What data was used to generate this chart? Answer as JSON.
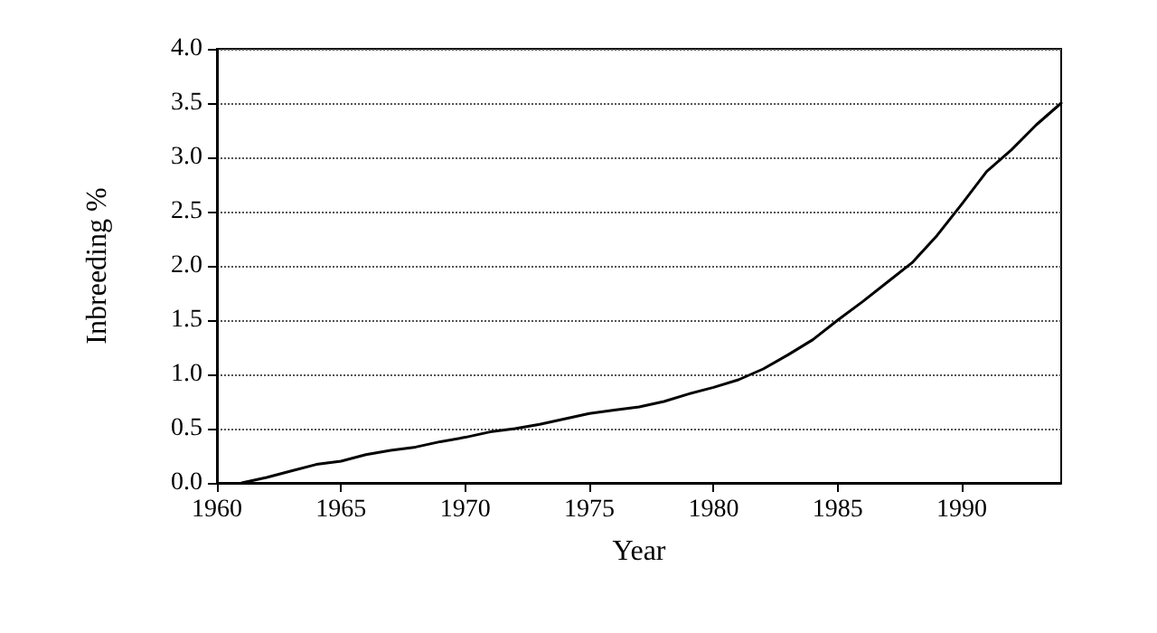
{
  "chart_data": {
    "type": "line",
    "xlabel": "Year",
    "ylabel": "Inbreeding %",
    "x": [
      1961,
      1962,
      1963,
      1964,
      1965,
      1966,
      1967,
      1968,
      1969,
      1970,
      1971,
      1972,
      1973,
      1974,
      1975,
      1976,
      1977,
      1978,
      1979,
      1980,
      1981,
      1982,
      1983,
      1984,
      1985,
      1986,
      1987,
      1988,
      1989,
      1990,
      1991,
      1992,
      1993,
      1994
    ],
    "series": [
      {
        "color": "#000000",
        "values": [
          0.0,
          0.05,
          0.11,
          0.17,
          0.2,
          0.26,
          0.3,
          0.33,
          0.38,
          0.42,
          0.47,
          0.5,
          0.54,
          0.59,
          0.64,
          0.67,
          0.7,
          0.75,
          0.82,
          0.88,
          0.95,
          1.05,
          1.18,
          1.32,
          1.5,
          1.67,
          1.85,
          2.03,
          2.28,
          2.57,
          2.87,
          3.07,
          3.3,
          3.5
        ]
      }
    ],
    "xlim": [
      1960,
      1994
    ],
    "xticks": [
      1960,
      1965,
      1970,
      1975,
      1980,
      1985,
      1990
    ],
    "ylim": [
      0,
      4
    ],
    "yticks": [
      {
        "value": 0,
        "label": "0.0"
      },
      {
        "value": 0.5,
        "label": "0.5"
      },
      {
        "value": 1,
        "label": "1.0"
      },
      {
        "value": 1.5,
        "label": "1.5"
      },
      {
        "value": 2,
        "label": "2.0"
      },
      {
        "value": 2.5,
        "label": "2.5"
      },
      {
        "value": 3,
        "label": "3.0"
      },
      {
        "value": 3.5,
        "label": "3.5"
      },
      {
        "value": 4,
        "label": "4.0"
      }
    ],
    "grid": "y",
    "marker": "none",
    "line_style": "solid"
  }
}
